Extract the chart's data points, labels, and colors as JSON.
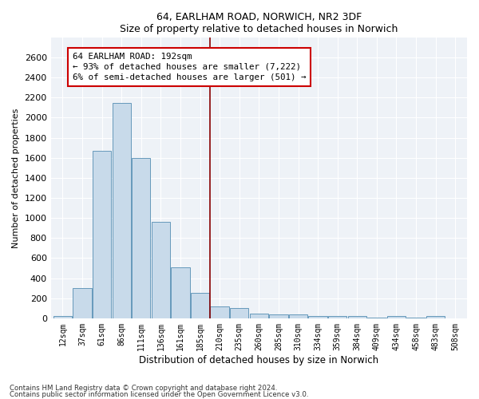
{
  "title": "64, EARLHAM ROAD, NORWICH, NR2 3DF",
  "subtitle": "Size of property relative to detached houses in Norwich",
  "xlabel": "Distribution of detached houses by size in Norwich",
  "ylabel": "Number of detached properties",
  "bar_color": "#c8daea",
  "bar_edge_color": "#6699bb",
  "background_color": "#eef2f7",
  "vline_color": "#880000",
  "annotation_text": "64 EARLHAM ROAD: 192sqm\n← 93% of detached houses are smaller (7,222)\n6% of semi-detached houses are larger (501) →",
  "categories": [
    "12sqm",
    "37sqm",
    "61sqm",
    "86sqm",
    "111sqm",
    "136sqm",
    "161sqm",
    "185sqm",
    "210sqm",
    "235sqm",
    "260sqm",
    "285sqm",
    "310sqm",
    "334sqm",
    "359sqm",
    "384sqm",
    "409sqm",
    "434sqm",
    "458sqm",
    "483sqm",
    "508sqm"
  ],
  "values": [
    25,
    300,
    1670,
    2150,
    1600,
    965,
    505,
    250,
    120,
    100,
    50,
    35,
    35,
    20,
    25,
    25,
    10,
    20,
    5,
    25,
    0
  ],
  "ylim": [
    0,
    2800
  ],
  "yticks": [
    0,
    200,
    400,
    600,
    800,
    1000,
    1200,
    1400,
    1600,
    1800,
    2000,
    2200,
    2400,
    2600
  ],
  "footnote1": "Contains HM Land Registry data © Crown copyright and database right 2024.",
  "footnote2": "Contains public sector information licensed under the Open Government Licence v3.0."
}
